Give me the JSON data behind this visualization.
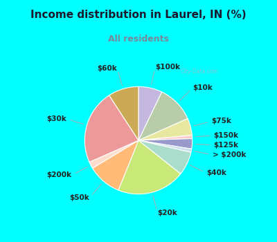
{
  "title": "Income distribution in Laurel, IN (%)",
  "subtitle": "All residents",
  "title_color": "#1a1a2e",
  "subtitle_color": "#778899",
  "background_color": "#00ffff",
  "chart_bg_color": "#e8f5ee",
  "slices": [
    {
      "label": "$100k",
      "value": 7,
      "color": "#c4b8e0"
    },
    {
      "label": "$10k",
      "value": 11,
      "color": "#b8ccaa"
    },
    {
      "label": "$75k",
      "value": 5,
      "color": "#e8e8a0"
    },
    {
      "label": "$150k",
      "value": 1,
      "color": "#ffcccc"
    },
    {
      "label": "$125k",
      "value": 3,
      "color": "#9999cc"
    },
    {
      "label": "> $200k",
      "value": 1,
      "color": "#ccddee"
    },
    {
      "label": "$40k",
      "value": 7,
      "color": "#aaddcc"
    },
    {
      "label": "$20k",
      "value": 20,
      "color": "#c8e878"
    },
    {
      "label": "$50k",
      "value": 10,
      "color": "#ffbb77"
    },
    {
      "label": "$200k",
      "value": 2,
      "color": "#ffddcc"
    },
    {
      "label": "$30k",
      "value": 22,
      "color": "#ee9999"
    },
    {
      "label": "$60k",
      "value": 9,
      "color": "#ccaa55"
    }
  ],
  "label_fontsize": 7.5,
  "label_color": "#222222"
}
